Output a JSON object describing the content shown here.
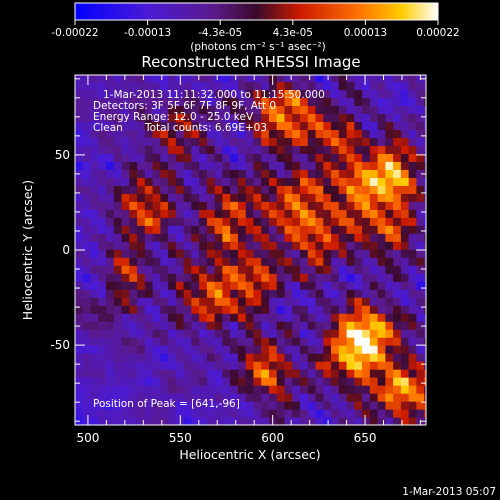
{
  "chart_data": {
    "type": "heatmap",
    "title": "Reconstructed RHESSI Image",
    "xlabel": "Heliocentric X (arcsec)",
    "ylabel": "Heliocentric Y (arcsec)",
    "xlim": [
      493,
      683
    ],
    "ylim": [
      -92,
      92
    ],
    "xticks": [
      500,
      550,
      600,
      650
    ],
    "yticks": [
      -50,
      0,
      50
    ],
    "colorbar": {
      "colormap": "blue-purple-red-yellow-white",
      "range": [
        -0.00022,
        0.00022
      ],
      "ticks": [
        "-0.00022",
        "-0.00013",
        "-4.3e-05",
        "4.3e-05",
        "0.00013",
        "0.00022"
      ],
      "label": "(photons cm⁻² s⁻¹ asec⁻²)"
    },
    "header": {
      "time_range": "1-Mar-2013 11:11:32.000 to 11:15:50.000",
      "detectors": "Detectors: 3F 5F 6F 7F 8F 9F, Att 0",
      "energy": "Energy Range: 12.0 - 25.0 keV",
      "method": "Clean",
      "counts": "Total counts: 6.69E+03"
    },
    "peak_label": "Position of Peak = [641,-96]",
    "peak": [
      641,
      -96
    ],
    "hotspots": [
      [
        602,
        69,
        0.85
      ],
      [
        650,
        -45,
        0.95
      ],
      [
        640,
        -60,
        0.85
      ],
      [
        620,
        5,
        0.75
      ],
      [
        610,
        25,
        0.7
      ],
      [
        645,
        30,
        0.75
      ],
      [
        665,
        40,
        0.8
      ],
      [
        670,
        -75,
        0.85
      ],
      [
        585,
        -20,
        0.7
      ],
      [
        560,
        -25,
        0.6
      ],
      [
        530,
        20,
        0.65
      ],
      [
        575,
        15,
        0.6
      ],
      [
        545,
        60,
        0.55
      ],
      [
        520,
        -15,
        0.5
      ],
      [
        660,
        10,
        0.65
      ],
      [
        630,
        60,
        0.55
      ],
      [
        595,
        -65,
        0.6
      ]
    ]
  },
  "timestamp": "1-Mar-2013 05:07"
}
